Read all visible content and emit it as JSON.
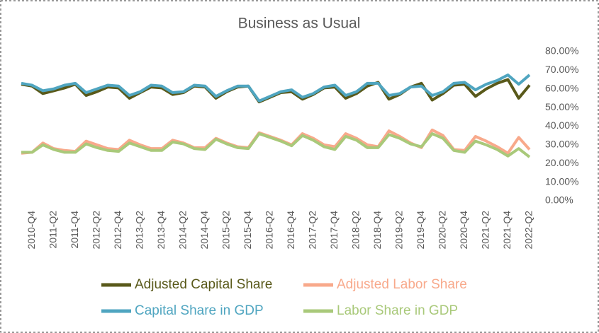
{
  "chart_data": {
    "type": "line",
    "title": "Business as Usual",
    "categories": [
      null,
      "2010-Q4",
      null,
      "2011-Q2",
      null,
      "2011-Q4",
      null,
      "2012-Q2",
      null,
      "2012-Q4",
      null,
      "2013-Q2",
      null,
      "2013-Q4",
      null,
      "2014-Q2",
      null,
      "2014-Q4",
      null,
      "2015-Q2",
      null,
      "2015-Q4",
      null,
      "2016-Q2",
      null,
      "2016-Q4",
      null,
      "2017-Q2",
      null,
      "2017-Q4",
      null,
      "2018-Q2",
      null,
      "2018-Q4",
      null,
      "2019-Q2",
      null,
      "2019-Q4",
      null,
      "2020-Q2",
      null,
      "2020-Q4",
      null,
      "2021-Q2",
      null,
      "2021-Q4",
      null,
      "2022-Q2"
    ],
    "series": [
      {
        "name": "Adjusted Capital Share",
        "color": "#59591a",
        "values": [
          62.5,
          61.5,
          57.5,
          59,
          60.5,
          62.5,
          56.5,
          58.5,
          61,
          60.5,
          55,
          58,
          61,
          60.5,
          57,
          58,
          61.5,
          61,
          55,
          58.5,
          61,
          61.5,
          53,
          55.5,
          58,
          58.5,
          54.5,
          57,
          60.5,
          61,
          55,
          57.5,
          61.5,
          63.5,
          54.5,
          57,
          61,
          63,
          54,
          57.5,
          62,
          62.5,
          56,
          60,
          63,
          65,
          55,
          62
        ]
      },
      {
        "name": "Adjusted Labor Share",
        "color": "#f8a98b",
        "values": [
          25.5,
          26,
          31,
          28,
          27,
          26.5,
          32,
          30,
          28,
          27.5,
          32.5,
          30,
          28,
          28,
          32.5,
          31,
          28.5,
          28.5,
          33.5,
          31,
          29,
          28.5,
          36.5,
          34.5,
          32.5,
          30,
          36,
          33.5,
          30,
          29,
          36,
          33.5,
          30,
          29,
          37.5,
          34.5,
          31,
          28.5,
          38,
          35,
          27.5,
          27,
          34.5,
          32,
          29,
          25.5,
          34,
          27.5
        ]
      },
      {
        "name": "Capital Share in GDP",
        "color": "#4fa5c0",
        "values": [
          63,
          62,
          59,
          60,
          62,
          63,
          58,
          60,
          62,
          61.5,
          56.5,
          58.5,
          62,
          61.5,
          58,
          58.5,
          62,
          61.5,
          56,
          59,
          61.5,
          61.5,
          53.5,
          56,
          58.5,
          59.5,
          55.5,
          57.5,
          61,
          62,
          56.5,
          58.5,
          63,
          63,
          56.5,
          57.5,
          61,
          61.5,
          56.5,
          58.5,
          63,
          63.5,
          59.5,
          62.5,
          64.5,
          67.5,
          62.5,
          67.5
        ]
      },
      {
        "name": "Labor Share in GDP",
        "color": "#a9c97a",
        "values": [
          26,
          26,
          30,
          27.5,
          26,
          26,
          30.5,
          28.5,
          27,
          26.5,
          31,
          29,
          27,
          27,
          31.5,
          30.5,
          28,
          27.5,
          33,
          30.5,
          28.5,
          28,
          36,
          34,
          32,
          29.5,
          35,
          32.5,
          29,
          27.5,
          34.5,
          32.5,
          28.5,
          28.5,
          35.5,
          33.5,
          30.5,
          29,
          36,
          33.5,
          27,
          26,
          32,
          30,
          27.5,
          24,
          28,
          23.5
        ]
      }
    ],
    "ylim": [
      0,
      80
    ],
    "yticks": [
      {
        "value": 0,
        "label": "0.00%"
      },
      {
        "value": 10,
        "label": "10.00%"
      },
      {
        "value": 20,
        "label": "20.00%"
      },
      {
        "value": 30,
        "label": "30.00%"
      },
      {
        "value": 40,
        "label": "40.00%"
      },
      {
        "value": 50,
        "label": "50.00%"
      },
      {
        "value": 60,
        "label": "60.00%"
      },
      {
        "value": 70,
        "label": "70.00%"
      },
      {
        "value": 80,
        "label": "80.00%"
      }
    ],
    "y_axis_side": "right",
    "grid": false,
    "legend": "bottom"
  }
}
